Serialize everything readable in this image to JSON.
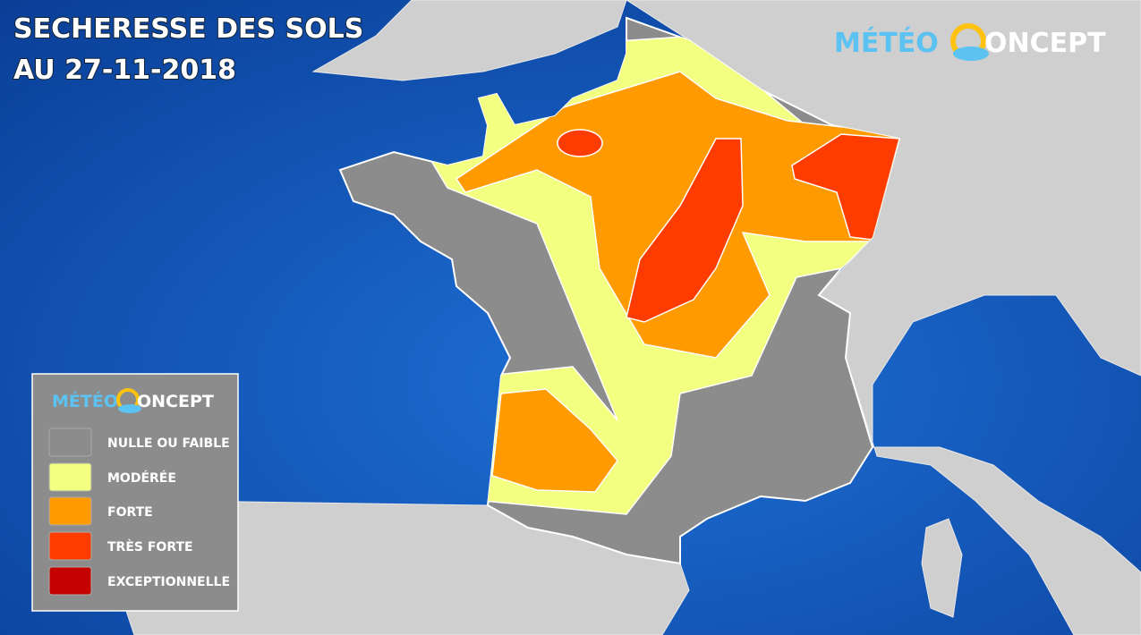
{
  "header": {
    "title": "SECHERESSE DES SOLS",
    "date": "AU 27-11-2018"
  },
  "logo": {
    "left": "MÉTÉO",
    "right": "ONCEPT"
  },
  "legend": {
    "logo": {
      "left": "MÉTÉO",
      "right": "ONCEPT"
    },
    "items": [
      {
        "label": "NULLE OU FAIBLE",
        "color": "#8c8c8c"
      },
      {
        "label": "MODÉRÉE",
        "color": "#f2ff80"
      },
      {
        "label": "FORTE",
        "color": "#ff9a00"
      },
      {
        "label": "TRÈS FORTE",
        "color": "#ff3c00"
      },
      {
        "label": "EXCEPTIONNELLE",
        "color": "#c40000"
      }
    ]
  }
}
